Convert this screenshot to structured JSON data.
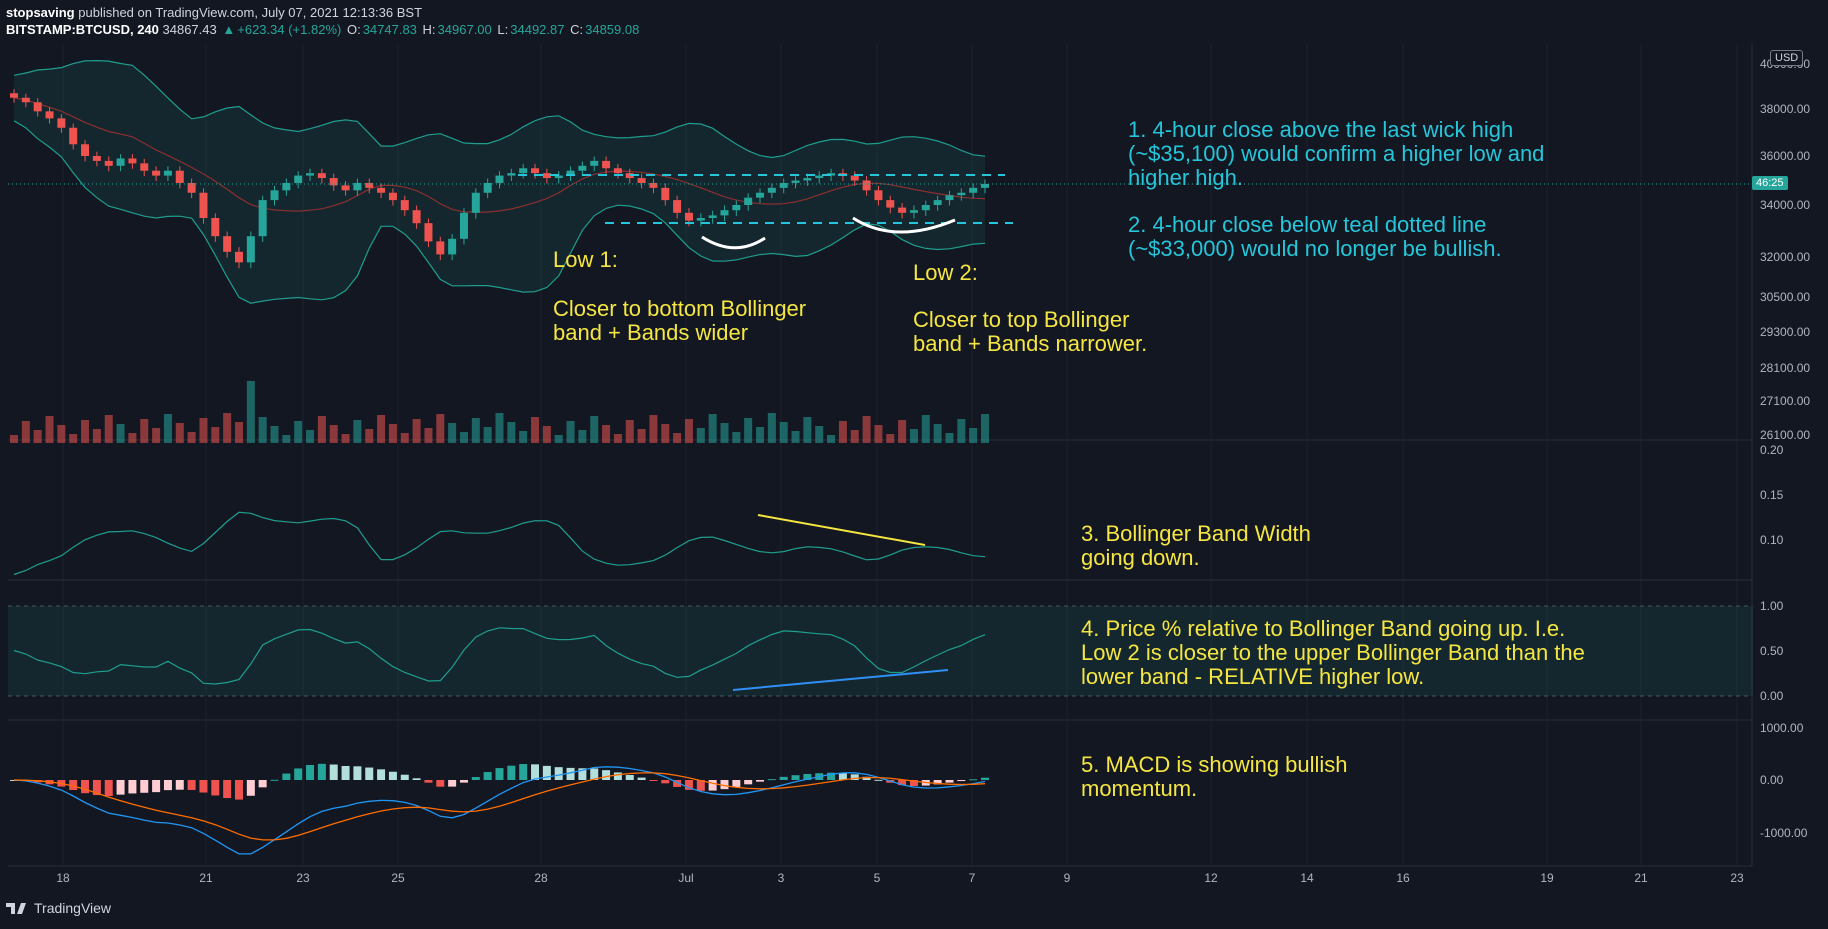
{
  "header": {
    "author": "stopsaving",
    "published_text": "published on TradingView.com, July 07, 2021 12:13:36 BST",
    "symbol": "BITSTAMP:BTCUSD, 240",
    "last": "34867.43",
    "change": "+623.34 (+1.82%)",
    "o_label": "O:",
    "o": "34747.83",
    "h_label": "H:",
    "h": "34967.00",
    "l_label": "L:",
    "l": "34492.87",
    "c_label": "C:",
    "c": "34859.08"
  },
  "currency": "USD",
  "countdown": "46:25",
  "footer": {
    "brand": "TradingView"
  },
  "colors": {
    "background": "#131722",
    "up": "#26a69a",
    "down": "#ef5350",
    "teal": "#26c6da",
    "annotation": "#f5e642",
    "bband": "#1f9e8f",
    "basis": "#8c2f2f",
    "macd": "#2196f3",
    "signal": "#ff6d00"
  },
  "annotations": {
    "a1": "1. 4-hour close above the last wick high",
    "a1b": "(~$35,100) would confirm a higher low and",
    "a1c": "higher high.",
    "a2": "2. 4-hour close below teal dotted line",
    "a2b": "(~$33,000) would no longer be bullish.",
    "low1": "Low 1:",
    "low1b": "Closer to bottom Bollinger",
    "low1c": "band + Bands wider",
    "low2": "Low 2:",
    "low2b": "Closer to top Bollinger",
    "low2c": "band + Bands narrower.",
    "a3": "3. Bollinger Band Width",
    "a3b": "going down.",
    "a4": "4. Price % relative to Bollinger Band going up. I.e.",
    "a4b": "Low 2 is closer to the upper Bollinger Band than the",
    "a4c": "lower band - RELATIVE higher low.",
    "a5": "5. MACD is showing bullish",
    "a5b": "momentum."
  },
  "chart_data": {
    "type": "candlestick",
    "symbol": "BITSTAMP:BTCUSD",
    "timeframe": "240",
    "price_axis_ticks": [
      "40000.00",
      "38000.00",
      "36000.00",
      "34000.00",
      "32000.00",
      "30500.00",
      "29300.00",
      "28100.00",
      "27100.00",
      "26100.00"
    ],
    "price_levels": {
      "resistance": 35100,
      "support": 33000
    },
    "x_ticks": [
      "18",
      "21",
      "23",
      "25",
      "28",
      "Jul",
      "3",
      "5",
      "7",
      "9",
      "12",
      "14",
      "16",
      "19",
      "21",
      "23"
    ],
    "bbw_ticks": [
      "0.20",
      "0.15",
      "0.10"
    ],
    "pctb_ticks": [
      "1.00",
      "0.50",
      "0.00"
    ],
    "macd_ticks": [
      "1000.00",
      "0.00",
      "-1000.00"
    ],
    "close_series": [
      38500,
      38300,
      37900,
      37600,
      37200,
      36500,
      36000,
      35800,
      35600,
      35900,
      35700,
      35400,
      35200,
      35400,
      34900,
      34500,
      33500,
      32800,
      32200,
      31800,
      32800,
      34200,
      34600,
      34900,
      35200,
      35300,
      35100,
      34800,
      34600,
      34900,
      34700,
      34500,
      34200,
      33800,
      33300,
      32600,
      32100,
      32700,
      33700,
      34500,
      34900,
      35200,
      35300,
      35500,
      35300,
      35100,
      35200,
      35400,
      35600,
      35800,
      35500,
      35300,
      35100,
      34900,
      34700,
      34200,
      33700,
      33400,
      33500,
      33600,
      33800,
      34000,
      34300,
      34500,
      34700,
      34900,
      35000,
      35100,
      35200,
      35300,
      35200,
      35000,
      34600,
      34200,
      33900,
      33700,
      33800,
      34000,
      34200,
      34400,
      34500,
      34700,
      34860
    ]
  }
}
